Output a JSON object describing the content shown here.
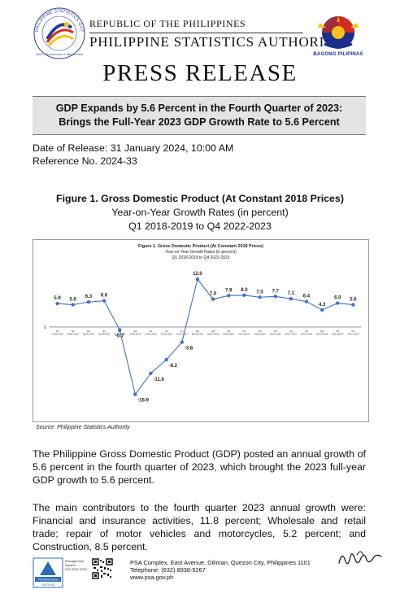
{
  "header": {
    "logo_ring_text": "PHILIPPINE STATISTICS AUTHORITY",
    "logo_motto": "Solid • Responsive • World-class",
    "line1": "REPUBLIC OF THE PHILIPPINES",
    "line2": "PHILIPPINE STATISTICS AUTHORITY",
    "bp_label": "BAGONG PILIPINAS"
  },
  "press_title": "PRESS RELEASE",
  "headline": {
    "line1": "GDP Expands by 5.6 Percent in the Fourth Quarter of 2023:",
    "line2": "Brings the Full-Year 2023 GDP Growth Rate to 5.6 Percent"
  },
  "meta": {
    "date": "Date of Release: 31 January 2024, 10:00 AM",
    "reference": "Reference No. 2024-33"
  },
  "figure": {
    "title": "Figure 1. Gross Domestic Product (At Constant 2018 Prices)",
    "subtitle1": "Year-on-Year Growth Rates (in percent)",
    "subtitle2": "Q1 2018-2019 to Q4 2022-2023",
    "source": "Source: Philippine Statistics Authority"
  },
  "chart_data": {
    "type": "line",
    "title": "Figure 1. Gross Domestic Product (At Constant 2018 Prices)",
    "subtitle": [
      "Year-on-Year Growth Rates (in percent)",
      "Q1 2018-2019 to Q4 2022-2023"
    ],
    "categories": [
      "Q1 2018-2019",
      "Q2 2018-2019",
      "Q3 2018-2019",
      "Q4 2018-2019",
      "Q1 2019-2020",
      "Q2 2019-2020",
      "Q3 2019-2020",
      "Q4 2019-2020",
      "Q1 2020-2021",
      "Q2 2020-2021",
      "Q3 2020-2021",
      "Q4 2020-2021",
      "Q1 2021-2022",
      "Q2 2021-2022",
      "Q3 2021-2022",
      "Q4 2021-2022",
      "Q1 2022-2023",
      "Q2 2022-2023",
      "Q3 2022-2023",
      "Q4 2022-2023"
    ],
    "values": [
      5.9,
      5.6,
      6.3,
      6.6,
      -0.7,
      -16.9,
      -11.6,
      -8.2,
      -3.8,
      12.0,
      7.0,
      7.9,
      8.0,
      7.5,
      7.7,
      7.1,
      6.4,
      4.3,
      6.0,
      5.6
    ],
    "zero_label": "0",
    "ylim": [
      -19,
      14.5
    ],
    "line_color": "#4472c4",
    "grid": false,
    "legend": "none"
  },
  "paragraphs": [
    "The Philippine Gross Domestic Product (GDP) posted an annual growth of 5.6 percent in the fourth quarter of 2023, which brought the 2023 full-year GDP growth to 5.6 percent.",
    "The main contributors to the fourth quarter 2023 annual growth were: Financial and insurance activities, 11.8 percent; Wholesale and retail trade; repair of motor vehicles and motorcycles, 5.2 percent; and Construction, 8.5 percent."
  ],
  "footer": {
    "cert_line1": "Management",
    "cert_line2": "System",
    "cert_line3": "ISO 9001:2015",
    "cert_badge": "TÜVRheinland",
    "cert_badge2": "CERTIFIED",
    "address": "PSA Complex, East Avenue, Diliman, Quezon City, Philippines 1101",
    "telephone": "Telephone: (632) 8938-5267",
    "website": "www.psa.gov.ph"
  },
  "colors": {
    "headline_bg": "#e3e3e3",
    "series": "#4472c4",
    "bp_blue": "#1a2f8a",
    "bp_red": "#d52b1e",
    "bp_yellow": "#f6c21b"
  }
}
